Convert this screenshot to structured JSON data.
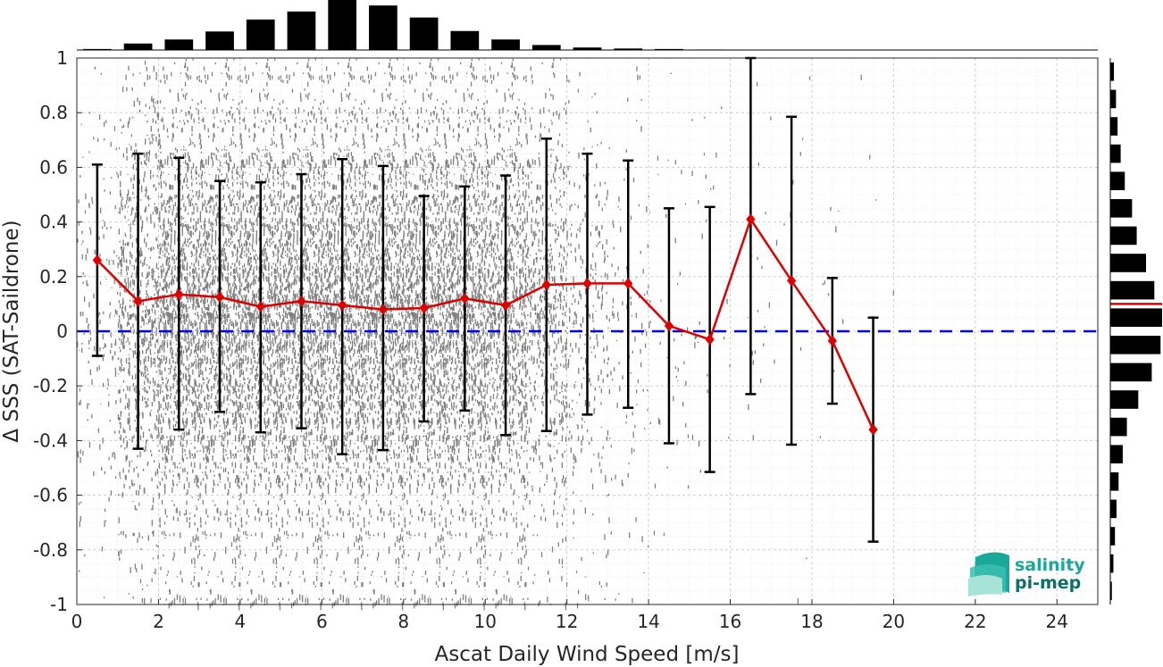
{
  "chart_data": {
    "type": "scatter",
    "title": "",
    "xlabel": "Ascat Daily Wind Speed [m/s]",
    "ylabel": "Δ SSS (SAT-Saildrone)",
    "xlim": [
      0,
      25
    ],
    "ylim": [
      -1,
      1
    ],
    "x_ticks": [
      0,
      2,
      4,
      6,
      8,
      10,
      12,
      14,
      16,
      18,
      20,
      22,
      24
    ],
    "y_ticks": [
      1,
      0.8,
      0.6,
      0.4,
      0.2,
      0,
      -0.2,
      -0.4,
      -0.6,
      -0.8,
      -1
    ],
    "x_tick_labels": [
      "0",
      "2",
      "4",
      "6",
      "8",
      "10",
      "12",
      "14",
      "16",
      "18",
      "20",
      "22",
      "24"
    ],
    "y_tick_labels": [
      "1",
      "0.8",
      "0.6",
      "0.4",
      "0.2",
      "0",
      "-0.2",
      "-0.4",
      "-0.6",
      "-0.8",
      "-1"
    ],
    "grid": true,
    "reference_line": {
      "y": 0,
      "style": "dashed",
      "color": "#0000ee"
    },
    "binned_stats": {
      "color": "#dd0000",
      "errorbar_color": "#000000",
      "x": [
        0.5,
        1.5,
        2.5,
        3.5,
        4.5,
        5.5,
        6.5,
        7.5,
        8.5,
        9.5,
        10.5,
        11.5,
        12.5,
        13.5,
        14.5,
        15.5,
        16.5,
        17.5,
        18.5,
        19.5
      ],
      "mean": [
        0.26,
        0.11,
        0.135,
        0.125,
        0.09,
        0.11,
        0.095,
        0.08,
        0.085,
        0.12,
        0.095,
        0.17,
        0.175,
        0.175,
        0.02,
        -0.03,
        0.41,
        0.185,
        -0.035,
        -0.36
      ],
      "upper": [
        0.61,
        0.65,
        0.635,
        0.55,
        0.545,
        0.575,
        0.63,
        0.605,
        0.495,
        0.53,
        0.57,
        0.705,
        0.65,
        0.625,
        0.45,
        0.455,
        1.0,
        0.785,
        0.195,
        0.05
      ],
      "lower": [
        -0.09,
        -0.43,
        -0.36,
        -0.295,
        -0.37,
        -0.355,
        -0.45,
        -0.435,
        -0.33,
        -0.29,
        -0.38,
        -0.365,
        -0.305,
        -0.28,
        -0.41,
        -0.515,
        -0.23,
        -0.415,
        -0.265,
        -0.77
      ]
    },
    "scatter_cloud": {
      "color": "#808080",
      "density_by_wind_bin": [
        0.08,
        0.35,
        0.7,
        0.85,
        1.0,
        1.0,
        1.0,
        0.95,
        0.85,
        0.7,
        0.5,
        0.3,
        0.12,
        0.05,
        0.02,
        0.012,
        0.008,
        0.005,
        0.004,
        0.002
      ]
    },
    "top_histogram": {
      "bin_centers": [
        0.5,
        1.5,
        2.5,
        3.5,
        4.5,
        5.5,
        6.5,
        7.5,
        8.5,
        9.5,
        10.5,
        11.5,
        12.5,
        13.5,
        14.5,
        15.5
      ],
      "relative_counts": [
        0.02,
        0.13,
        0.21,
        0.37,
        0.61,
        0.77,
        1.0,
        0.89,
        0.65,
        0.38,
        0.21,
        0.1,
        0.05,
        0.03,
        0.02,
        0.01
      ]
    },
    "right_histogram": {
      "bin_centers": [
        0.95,
        0.85,
        0.75,
        0.65,
        0.55,
        0.45,
        0.35,
        0.25,
        0.15,
        0.05,
        -0.05,
        -0.15,
        -0.25,
        -0.35,
        -0.45,
        -0.55,
        -0.65,
        -0.75,
        -0.85,
        -0.95
      ],
      "relative_counts": [
        0.07,
        0.11,
        0.14,
        0.2,
        0.28,
        0.42,
        0.51,
        0.69,
        0.85,
        1.0,
        0.97,
        0.8,
        0.54,
        0.32,
        0.24,
        0.16,
        0.12,
        0.09,
        0.06,
        0.03
      ],
      "median_marker": 0.1,
      "median_color": "#dd0000"
    }
  },
  "logo": {
    "line1": "salinity",
    "line2": "pi-mep",
    "color_line1": "#1aa89a",
    "color_line2": "#0e6e68"
  }
}
